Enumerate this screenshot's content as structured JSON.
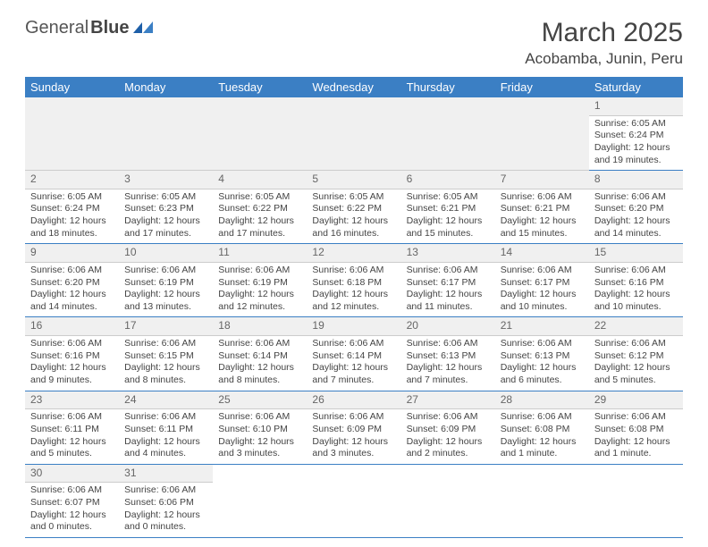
{
  "logo": {
    "text1": "General",
    "text2": "Blue"
  },
  "title": "March 2025",
  "location": "Acobamba, Junin, Peru",
  "dayHeaders": [
    "Sunday",
    "Monday",
    "Tuesday",
    "Wednesday",
    "Thursday",
    "Friday",
    "Saturday"
  ],
  "colors": {
    "header_bg": "#3b7fc4",
    "row_border": "#3b7fc4"
  },
  "weeks": [
    [
      null,
      null,
      null,
      null,
      null,
      null,
      {
        "n": "1",
        "sr": "6:05 AM",
        "ss": "6:24 PM",
        "dl": "12 hours and 19 minutes."
      }
    ],
    [
      {
        "n": "2",
        "sr": "6:05 AM",
        "ss": "6:24 PM",
        "dl": "12 hours and 18 minutes."
      },
      {
        "n": "3",
        "sr": "6:05 AM",
        "ss": "6:23 PM",
        "dl": "12 hours and 17 minutes."
      },
      {
        "n": "4",
        "sr": "6:05 AM",
        "ss": "6:22 PM",
        "dl": "12 hours and 17 minutes."
      },
      {
        "n": "5",
        "sr": "6:05 AM",
        "ss": "6:22 PM",
        "dl": "12 hours and 16 minutes."
      },
      {
        "n": "6",
        "sr": "6:05 AM",
        "ss": "6:21 PM",
        "dl": "12 hours and 15 minutes."
      },
      {
        "n": "7",
        "sr": "6:06 AM",
        "ss": "6:21 PM",
        "dl": "12 hours and 15 minutes."
      },
      {
        "n": "8",
        "sr": "6:06 AM",
        "ss": "6:20 PM",
        "dl": "12 hours and 14 minutes."
      }
    ],
    [
      {
        "n": "9",
        "sr": "6:06 AM",
        "ss": "6:20 PM",
        "dl": "12 hours and 14 minutes."
      },
      {
        "n": "10",
        "sr": "6:06 AM",
        "ss": "6:19 PM",
        "dl": "12 hours and 13 minutes."
      },
      {
        "n": "11",
        "sr": "6:06 AM",
        "ss": "6:19 PM",
        "dl": "12 hours and 12 minutes."
      },
      {
        "n": "12",
        "sr": "6:06 AM",
        "ss": "6:18 PM",
        "dl": "12 hours and 12 minutes."
      },
      {
        "n": "13",
        "sr": "6:06 AM",
        "ss": "6:17 PM",
        "dl": "12 hours and 11 minutes."
      },
      {
        "n": "14",
        "sr": "6:06 AM",
        "ss": "6:17 PM",
        "dl": "12 hours and 10 minutes."
      },
      {
        "n": "15",
        "sr": "6:06 AM",
        "ss": "6:16 PM",
        "dl": "12 hours and 10 minutes."
      }
    ],
    [
      {
        "n": "16",
        "sr": "6:06 AM",
        "ss": "6:16 PM",
        "dl": "12 hours and 9 minutes."
      },
      {
        "n": "17",
        "sr": "6:06 AM",
        "ss": "6:15 PM",
        "dl": "12 hours and 8 minutes."
      },
      {
        "n": "18",
        "sr": "6:06 AM",
        "ss": "6:14 PM",
        "dl": "12 hours and 8 minutes."
      },
      {
        "n": "19",
        "sr": "6:06 AM",
        "ss": "6:14 PM",
        "dl": "12 hours and 7 minutes."
      },
      {
        "n": "20",
        "sr": "6:06 AM",
        "ss": "6:13 PM",
        "dl": "12 hours and 7 minutes."
      },
      {
        "n": "21",
        "sr": "6:06 AM",
        "ss": "6:13 PM",
        "dl": "12 hours and 6 minutes."
      },
      {
        "n": "22",
        "sr": "6:06 AM",
        "ss": "6:12 PM",
        "dl": "12 hours and 5 minutes."
      }
    ],
    [
      {
        "n": "23",
        "sr": "6:06 AM",
        "ss": "6:11 PM",
        "dl": "12 hours and 5 minutes."
      },
      {
        "n": "24",
        "sr": "6:06 AM",
        "ss": "6:11 PM",
        "dl": "12 hours and 4 minutes."
      },
      {
        "n": "25",
        "sr": "6:06 AM",
        "ss": "6:10 PM",
        "dl": "12 hours and 3 minutes."
      },
      {
        "n": "26",
        "sr": "6:06 AM",
        "ss": "6:09 PM",
        "dl": "12 hours and 3 minutes."
      },
      {
        "n": "27",
        "sr": "6:06 AM",
        "ss": "6:09 PM",
        "dl": "12 hours and 2 minutes."
      },
      {
        "n": "28",
        "sr": "6:06 AM",
        "ss": "6:08 PM",
        "dl": "12 hours and 1 minute."
      },
      {
        "n": "29",
        "sr": "6:06 AM",
        "ss": "6:08 PM",
        "dl": "12 hours and 1 minute."
      }
    ],
    [
      {
        "n": "30",
        "sr": "6:06 AM",
        "ss": "6:07 PM",
        "dl": "12 hours and 0 minutes."
      },
      {
        "n": "31",
        "sr": "6:06 AM",
        "ss": "6:06 PM",
        "dl": "12 hours and 0 minutes."
      },
      null,
      null,
      null,
      null,
      null
    ]
  ],
  "labels": {
    "sunrise": "Sunrise:",
    "sunset": "Sunset:",
    "daylight": "Daylight:"
  }
}
